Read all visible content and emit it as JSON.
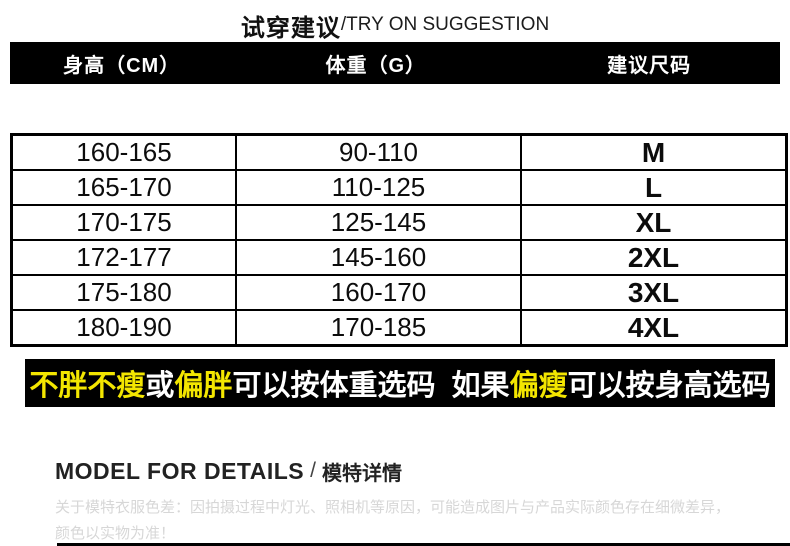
{
  "title": {
    "cn": "试穿建议",
    "en": "/TRY ON SUGGESTION"
  },
  "table": {
    "headers": [
      "身高（CM）",
      "体重（G）",
      "建议尺码"
    ],
    "rows": [
      [
        "160-165",
        "90-110",
        "M"
      ],
      [
        "165-170",
        "110-125",
        "L"
      ],
      [
        "170-175",
        "125-145",
        "XL"
      ],
      [
        "172-177",
        "145-160",
        "2XL"
      ],
      [
        "175-180",
        "160-170",
        "3XL"
      ],
      [
        "180-190",
        "170-185",
        "4XL"
      ]
    ]
  },
  "banner": {
    "background": "#000000",
    "highlight_color": "#f3e600",
    "normal_color": "#ffffff",
    "segments": [
      {
        "text": "不胖不瘦",
        "color": "#f3e600"
      },
      {
        "text": "或",
        "color": "#ffffff"
      },
      {
        "text": "偏胖",
        "color": "#f3e600"
      },
      {
        "text": "可以按体重选码  如果",
        "color": "#ffffff"
      },
      {
        "text": "偏瘦",
        "color": "#f3e600"
      },
      {
        "text": "可以按身高选码",
        "color": "#ffffff"
      }
    ]
  },
  "model_section": {
    "heading_en": "MODEL FOR DETAILS",
    "heading_sep": "/",
    "heading_cn": "模特详情",
    "note_lines": [
      "关于模特衣服色差：因拍摄过程中灯光、照相机等原因，可能造成图片与产品实际颜色存在细微差异，",
      "颜色以实物为准！"
    ]
  },
  "colors": {
    "header_bar": "#000000",
    "table_border": "#000000",
    "note_gray": "#d7d7d7"
  }
}
